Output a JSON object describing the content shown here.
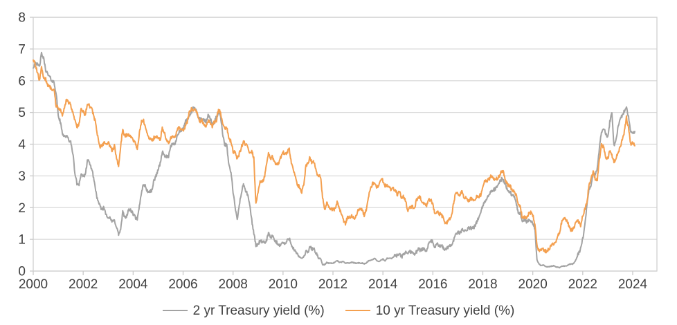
{
  "colors": {
    "series_2yr": "#a3a3a3",
    "series_10yr": "#f4a050",
    "gridline": "#d9d9d9",
    "plot_border": "#cfcfcf",
    "tick_mark": "#c9c9c9",
    "axis_text": "#404040",
    "background": "#ffffff"
  },
  "legend": {
    "position": "bottom-center",
    "items": [
      {
        "label": "2 yr Treasury yield (%)",
        "color": "#a3a3a3"
      },
      {
        "label": "10 yr Treasury yield (%)",
        "color": "#f4a050"
      }
    ]
  },
  "chart_data": {
    "type": "line",
    "title": "",
    "xlabel": "",
    "ylabel": "",
    "grid": "horizontal",
    "legend_position": "bottom-center",
    "x_axis": {
      "tick_labels": [
        "2000",
        "2002",
        "2004",
        "2006",
        "2008",
        "2010",
        "2012",
        "2014",
        "2016",
        "2018",
        "2020",
        "2022",
        "2024"
      ],
      "tick_start_year": 2000,
      "tick_step_years": 2,
      "axis_max_year": 2025
    },
    "y_axis": {
      "tick_labels": [
        "0",
        "1",
        "2",
        "3",
        "4",
        "5",
        "6",
        "7",
        "8"
      ],
      "min": 0,
      "max": 8,
      "tick_step": 1
    },
    "sampling": "monthly values, Jan 2000 through Feb 2024",
    "series": [
      {
        "name": "2 yr Treasury yield (%)",
        "color": "#a3a3a3",
        "start_year": 2000,
        "step_months": 1,
        "values": [
          6.4,
          6.6,
          6.5,
          6.45,
          6.85,
          6.7,
          6.35,
          6.2,
          6.1,
          6.0,
          5.95,
          5.6,
          4.9,
          4.7,
          4.35,
          4.25,
          4.25,
          4.15,
          4.05,
          3.75,
          3.1,
          2.75,
          2.75,
          3.05,
          3.0,
          3.0,
          3.5,
          3.4,
          3.25,
          2.95,
          2.55,
          2.2,
          2.05,
          1.95,
          2.0,
          1.8,
          1.7,
          1.65,
          1.55,
          1.6,
          1.4,
          1.15,
          1.3,
          1.85,
          1.7,
          1.75,
          1.95,
          1.9,
          1.8,
          1.7,
          1.6,
          2.05,
          2.5,
          2.75,
          2.65,
          2.5,
          2.5,
          2.55,
          2.85,
          3.0,
          3.2,
          3.4,
          3.75,
          3.65,
          3.6,
          3.6,
          3.9,
          4.05,
          3.95,
          4.25,
          4.4,
          4.4,
          4.5,
          4.7,
          4.75,
          4.9,
          5.0,
          5.15,
          5.1,
          4.9,
          4.8,
          4.8,
          4.75,
          4.7,
          4.9,
          4.85,
          4.6,
          4.7,
          4.85,
          5.0,
          4.9,
          4.35,
          4.0,
          3.95,
          3.35,
          3.1,
          2.5,
          2.0,
          1.6,
          2.1,
          2.45,
          2.75,
          2.55,
          2.4,
          2.1,
          1.6,
          1.2,
          0.8,
          0.85,
          0.95,
          0.9,
          0.9,
          0.95,
          1.2,
          1.05,
          1.1,
          0.95,
          0.9,
          0.8,
          0.85,
          0.9,
          0.85,
          0.95,
          1.05,
          0.85,
          0.7,
          0.6,
          0.5,
          0.45,
          0.4,
          0.45,
          0.6,
          0.6,
          0.75,
          0.7,
          0.7,
          0.55,
          0.4,
          0.4,
          0.2,
          0.2,
          0.27,
          0.25,
          0.25,
          0.25,
          0.28,
          0.33,
          0.28,
          0.28,
          0.3,
          0.25,
          0.26,
          0.25,
          0.28,
          0.26,
          0.25,
          0.26,
          0.25,
          0.25,
          0.23,
          0.25,
          0.32,
          0.34,
          0.36,
          0.4,
          0.33,
          0.3,
          0.34,
          0.38,
          0.32,
          0.4,
          0.41,
          0.39,
          0.44,
          0.5,
          0.49,
          0.55,
          0.45,
          0.52,
          0.62,
          0.55,
          0.62,
          0.6,
          0.54,
          0.6,
          0.69,
          0.66,
          0.7,
          0.7,
          0.64,
          0.85,
          0.97,
          0.9,
          0.74,
          0.86,
          0.76,
          0.8,
          0.74,
          0.66,
          0.74,
          0.76,
          0.84,
          0.98,
          1.2,
          1.21,
          1.2,
          1.31,
          1.24,
          1.3,
          1.34,
          1.36,
          1.33,
          1.4,
          1.55,
          1.68,
          1.84,
          2.05,
          2.2,
          2.3,
          2.4,
          2.5,
          2.55,
          2.6,
          2.65,
          2.8,
          2.9,
          2.85,
          2.7,
          2.55,
          2.5,
          2.4,
          2.35,
          2.2,
          1.8,
          1.85,
          1.55,
          1.65,
          1.55,
          1.6,
          1.6,
          1.5,
          1.35,
          0.35,
          0.22,
          0.17,
          0.19,
          0.15,
          0.14,
          0.14,
          0.15,
          0.17,
          0.14,
          0.12,
          0.11,
          0.15,
          0.16,
          0.15,
          0.2,
          0.22,
          0.22,
          0.27,
          0.4,
          0.55,
          0.7,
          1.0,
          1.45,
          2.05,
          2.6,
          2.65,
          3.1,
          3.0,
          3.25,
          3.9,
          4.4,
          4.5,
          4.35,
          4.2,
          4.7,
          5.0,
          3.95,
          4.15,
          4.55,
          4.8,
          4.9,
          5.05,
          5.15,
          4.85,
          4.4,
          4.3,
          4.4
        ]
      },
      {
        "name": "10 yr Treasury yield (%)",
        "color": "#f4a050",
        "start_year": 2000,
        "step_months": 1,
        "values": [
          6.65,
          6.5,
          6.25,
          6.0,
          6.4,
          6.1,
          6.05,
          5.85,
          5.8,
          5.75,
          5.7,
          5.2,
          5.15,
          5.1,
          4.9,
          5.15,
          5.4,
          5.3,
          5.25,
          5.0,
          4.75,
          4.55,
          4.65,
          5.1,
          5.05,
          4.9,
          5.3,
          5.2,
          5.15,
          4.9,
          4.65,
          4.25,
          3.9,
          3.95,
          4.05,
          4.0,
          4.05,
          3.9,
          3.8,
          3.95,
          3.55,
          3.3,
          3.95,
          4.45,
          4.25,
          4.3,
          4.3,
          4.25,
          4.15,
          4.05,
          3.85,
          4.35,
          4.7,
          4.75,
          4.5,
          4.3,
          4.15,
          4.1,
          4.2,
          4.25,
          4.2,
          4.15,
          4.5,
          4.35,
          4.15,
          4.0,
          4.2,
          4.25,
          4.2,
          4.45,
          4.55,
          4.45,
          4.4,
          4.55,
          4.7,
          5.0,
          5.1,
          5.1,
          5.1,
          4.9,
          4.7,
          4.75,
          4.6,
          4.55,
          4.75,
          4.7,
          4.55,
          4.7,
          4.75,
          5.1,
          5.0,
          4.7,
          4.5,
          4.55,
          4.15,
          4.1,
          3.75,
          3.75,
          3.5,
          3.7,
          3.9,
          4.1,
          4.0,
          3.9,
          3.7,
          3.8,
          3.55,
          2.1,
          2.5,
          2.85,
          2.8,
          2.95,
          3.3,
          3.7,
          3.55,
          3.6,
          3.4,
          3.4,
          3.4,
          3.6,
          3.75,
          3.7,
          3.75,
          3.85,
          3.4,
          3.2,
          3.0,
          2.7,
          2.65,
          2.5,
          2.75,
          3.3,
          3.4,
          3.6,
          3.4,
          3.45,
          3.15,
          3.0,
          3.0,
          2.3,
          1.95,
          2.15,
          2.0,
          1.95,
          1.95,
          1.95,
          2.2,
          2.0,
          1.8,
          1.6,
          1.5,
          1.7,
          1.7,
          1.75,
          1.65,
          1.7,
          1.9,
          2.0,
          1.95,
          1.75,
          1.95,
          2.3,
          2.6,
          2.75,
          2.8,
          2.6,
          2.7,
          2.9,
          2.85,
          2.7,
          2.7,
          2.7,
          2.55,
          2.6,
          2.55,
          2.4,
          2.55,
          2.3,
          2.35,
          2.2,
          1.9,
          2.0,
          2.05,
          1.95,
          2.2,
          2.35,
          2.3,
          2.15,
          2.15,
          2.05,
          2.25,
          2.25,
          2.1,
          1.8,
          1.9,
          1.8,
          1.8,
          1.65,
          1.5,
          1.55,
          1.65,
          1.75,
          2.15,
          2.5,
          2.45,
          2.4,
          2.5,
          2.3,
          2.3,
          2.2,
          2.3,
          2.25,
          2.2,
          2.35,
          2.35,
          2.4,
          2.6,
          2.85,
          2.85,
          2.9,
          3.0,
          2.9,
          2.9,
          2.9,
          3.0,
          3.15,
          3.1,
          2.85,
          2.7,
          2.7,
          2.55,
          2.55,
          2.4,
          2.05,
          2.05,
          1.65,
          1.7,
          1.7,
          1.8,
          1.85,
          1.75,
          1.5,
          0.8,
          0.65,
          0.65,
          0.7,
          0.62,
          0.65,
          0.7,
          0.8,
          0.85,
          0.93,
          1.1,
          1.25,
          1.6,
          1.65,
          1.6,
          1.5,
          1.3,
          1.3,
          1.4,
          1.6,
          1.55,
          1.45,
          1.75,
          1.95,
          2.15,
          2.75,
          2.9,
          3.15,
          2.9,
          2.9,
          3.5,
          4.0,
          3.9,
          3.6,
          3.55,
          3.8,
          3.65,
          3.45,
          3.55,
          3.75,
          3.9,
          4.15,
          4.4,
          4.85,
          4.5,
          4.0,
          4.05,
          3.95
        ]
      }
    ]
  }
}
